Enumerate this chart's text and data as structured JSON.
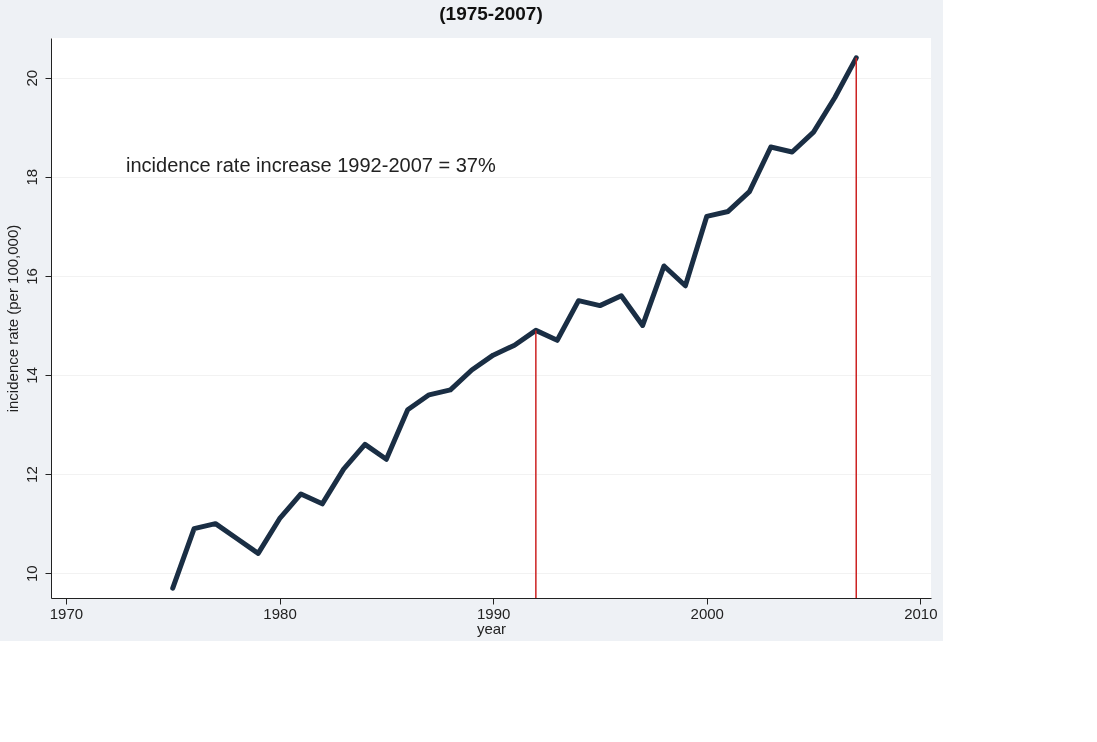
{
  "chart_data": {
    "type": "line",
    "title": "(1975-2007)",
    "xlabel": "year",
    "ylabel": "incidence rate (per 100,000)",
    "x": [
      1975,
      1976,
      1977,
      1978,
      1979,
      1980,
      1981,
      1982,
      1983,
      1984,
      1985,
      1986,
      1987,
      1988,
      1989,
      1990,
      1991,
      1992,
      1993,
      1994,
      1995,
      1996,
      1997,
      1998,
      1999,
      2000,
      2001,
      2002,
      2003,
      2004,
      2005,
      2006,
      2007
    ],
    "series": [
      {
        "color": "#1a2e44",
        "values": [
          9.7,
          10.9,
          11.0,
          10.7,
          10.4,
          11.1,
          11.6,
          11.4,
          12.1,
          12.6,
          12.3,
          13.3,
          13.6,
          13.7,
          14.1,
          14.4,
          14.6,
          14.9,
          14.7,
          15.5,
          15.4,
          15.6,
          15.0,
          16.2,
          15.8,
          17.2,
          17.3,
          17.7,
          18.6,
          18.5,
          18.9,
          19.6,
          20.4
        ]
      }
    ],
    "xlim": [
      1969.3,
      2010.5
    ],
    "xticks": [
      1970,
      1980,
      1990,
      2000,
      2010
    ],
    "ylim": [
      9.5,
      20.8
    ],
    "yticks": [
      10,
      12,
      14,
      16,
      18,
      20
    ],
    "ref_lines": [
      {
        "axis": "x",
        "value": 1992,
        "color": "#cc2222"
      },
      {
        "axis": "x",
        "value": 2007,
        "color": "#cc2222"
      }
    ],
    "annotations": [
      "incidence rate increase 1992-2007 = 37%"
    ],
    "grid": "y",
    "marker": "none",
    "line_style": "solid"
  }
}
